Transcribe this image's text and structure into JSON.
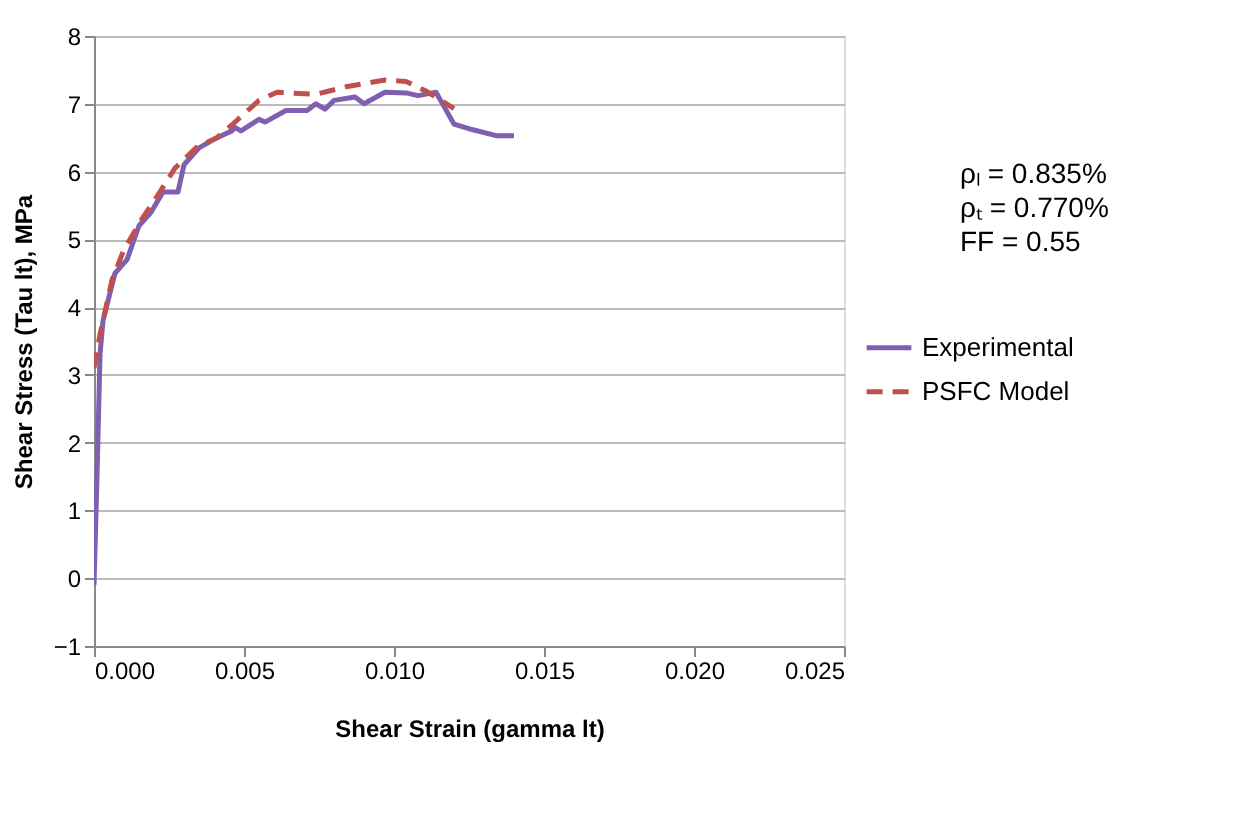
{
  "chart_data": {
    "type": "line",
    "xlabel": "Shear Strain (gamma lt)",
    "ylabel": "Shear Stress (Tau lt), MPa",
    "annotations": [
      "ρₗ = 0.835%",
      "ρₜ = 0.770%",
      "FF = 0.55"
    ],
    "xlim": [
      0,
      0.025
    ],
    "xticks": [
      {
        "value": 0,
        "label": "0.000"
      },
      0.005,
      {
        "value": 0.01,
        "label": "0.010"
      },
      0.015,
      {
        "value": 0.02,
        "label": "0.020"
      },
      0.025
    ],
    "ylim": [
      -1,
      8
    ],
    "yticks": [
      -1,
      0,
      1,
      2,
      3,
      4,
      5,
      6,
      7,
      8
    ],
    "grid": "y",
    "legend": "right",
    "series": [
      {
        "name": "Experimental",
        "color": "#7f5fb0",
        "line_style": "solid",
        "x": [
          0,
          0.0001,
          0.0002,
          0.0003,
          0.0007,
          0.0011,
          0.0015,
          0.0019,
          0.0023,
          0.0028,
          0.003,
          0.0035,
          0.0041,
          0.0046,
          0.0047,
          0.0049,
          0.0055,
          0.0057,
          0.0064,
          0.0071,
          0.0074,
          0.0077,
          0.008,
          0.0087,
          0.009,
          0.0097,
          0.0104,
          0.0108,
          0.0114,
          0.012,
          0.0126,
          0.0134,
          0.014
        ],
        "values": [
          -0.1,
          1.5,
          3.3,
          3.8,
          4.5,
          4.7,
          5.2,
          5.4,
          5.7,
          5.7,
          6.1,
          6.35,
          6.5,
          6.6,
          6.65,
          6.6,
          6.77,
          6.73,
          6.9,
          6.9,
          7.0,
          6.92,
          7.05,
          7.1,
          7.0,
          7.17,
          7.16,
          7.12,
          7.17,
          6.7,
          6.62,
          6.53,
          6.53
        ]
      },
      {
        "name": "PSFC Model",
        "color": "#c0504d",
        "line_style": "dashed",
        "x": [
          0,
          0.0002,
          0.0006,
          0.001,
          0.0016,
          0.0022,
          0.0027,
          0.0034,
          0.0041,
          0.0047,
          0.0055,
          0.0061,
          0.0074,
          0.0084,
          0.0097,
          0.0104,
          0.0111,
          0.012
        ],
        "values": [
          3.1,
          3.6,
          4.4,
          4.85,
          5.3,
          5.7,
          6.05,
          6.35,
          6.5,
          6.73,
          7.05,
          7.17,
          7.14,
          7.25,
          7.35,
          7.33,
          7.18,
          6.93
        ]
      }
    ]
  }
}
